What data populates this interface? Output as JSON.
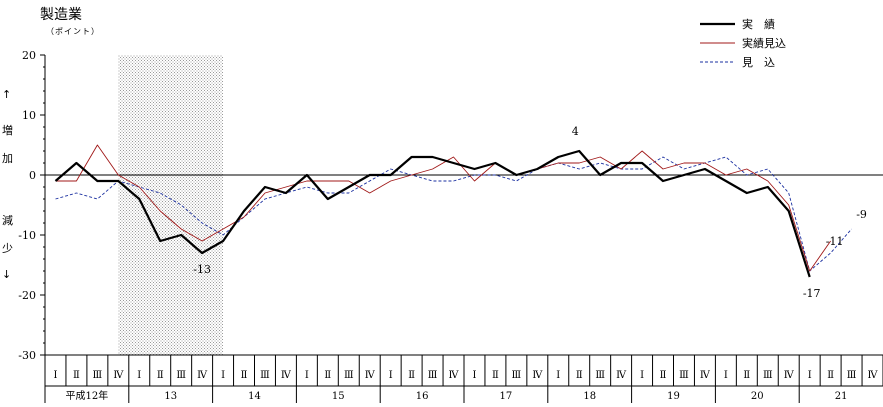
{
  "header": {
    "title": "製造業",
    "unit": "（ポイント）"
  },
  "y_axis_side": {
    "up_arrow": "↑",
    "increase_1": "増",
    "increase_2": "加",
    "decrease_1": "減",
    "decrease_2": "少",
    "down_arrow": "↓"
  },
  "chart_data": {
    "type": "line",
    "title": "製造業",
    "ylabel": "（ポイント）",
    "ylim": [
      -30,
      20
    ],
    "yticks": [
      20,
      10,
      0,
      -10,
      -20,
      -30
    ],
    "grid": false,
    "legend_position": "top-right",
    "shaded_period": {
      "start_index": 3,
      "end_index": 8
    },
    "quarters": [
      "Ⅰ",
      "Ⅱ",
      "Ⅲ",
      "Ⅳ",
      "Ⅰ",
      "Ⅱ",
      "Ⅲ",
      "Ⅳ",
      "Ⅰ",
      "Ⅱ",
      "Ⅲ",
      "Ⅳ",
      "Ⅰ",
      "Ⅱ",
      "Ⅲ",
      "Ⅳ",
      "Ⅰ",
      "Ⅱ",
      "Ⅲ",
      "Ⅳ",
      "Ⅰ",
      "Ⅱ",
      "Ⅲ",
      "Ⅳ",
      "Ⅰ",
      "Ⅱ",
      "Ⅲ",
      "Ⅳ",
      "Ⅰ",
      "Ⅱ",
      "Ⅲ",
      "Ⅳ",
      "Ⅰ",
      "Ⅱ",
      "Ⅲ",
      "Ⅳ",
      "Ⅰ",
      "Ⅱ",
      "Ⅲ",
      "Ⅳ"
    ],
    "years": [
      {
        "label": "平成12年",
        "start": 0,
        "count": 4
      },
      {
        "label": "13",
        "start": 4,
        "count": 4
      },
      {
        "label": "14",
        "start": 8,
        "count": 4
      },
      {
        "label": "15",
        "start": 12,
        "count": 4
      },
      {
        "label": "16",
        "start": 16,
        "count": 4
      },
      {
        "label": "17",
        "start": 20,
        "count": 4
      },
      {
        "label": "18",
        "start": 24,
        "count": 4
      },
      {
        "label": "19",
        "start": 28,
        "count": 4
      },
      {
        "label": "20",
        "start": 32,
        "count": 4
      },
      {
        "label": "21",
        "start": 36,
        "count": 4
      }
    ],
    "series": [
      {
        "name": "実　績",
        "color": "#000000",
        "style": "solid-thick",
        "values": [
          -1,
          2,
          -1,
          -1,
          -4,
          -11,
          -10,
          -13,
          -11,
          -6,
          -2,
          -3,
          0,
          -4,
          -2,
          0,
          0,
          3,
          3,
          2,
          1,
          2,
          0,
          1,
          3,
          4,
          0,
          2,
          2,
          -1,
          0,
          1,
          -1,
          -3,
          -2,
          -6,
          -17,
          null,
          null,
          null
        ]
      },
      {
        "name": "実績見込",
        "color": "#a01818",
        "style": "solid-thin",
        "values": [
          -1,
          -1,
          5,
          0,
          -2,
          -6,
          -9,
          -11,
          -9,
          -7,
          -3,
          -2,
          -1,
          -1,
          -1,
          -3,
          -1,
          0,
          1,
          3,
          -1,
          2,
          0,
          1,
          2,
          2,
          3,
          1,
          4,
          1,
          2,
          2,
          0,
          1,
          -1,
          -5,
          -16,
          -11,
          null,
          null
        ]
      },
      {
        "name": "見　込",
        "color": "#1a2fa0",
        "style": "dashed",
        "values": [
          -4,
          -3,
          -4,
          -1,
          -2,
          -3,
          -5,
          -8,
          -10,
          -7,
          -4,
          -3,
          -2,
          -3,
          -3,
          -1,
          1,
          0,
          -1,
          -1,
          0,
          0,
          -1,
          1,
          2,
          1,
          2,
          1,
          1,
          3,
          1,
          2,
          3,
          0,
          1,
          -3,
          -16,
          -13,
          -9,
          null
        ]
      }
    ],
    "annotations": [
      {
        "text": "4",
        "index": 25,
        "value": 4
      },
      {
        "text": "-13",
        "index": 7,
        "value": -13
      },
      {
        "text": "-17",
        "index": 36,
        "value": -17
      },
      {
        "text": "-11",
        "index": 37,
        "value": -11
      },
      {
        "text": "-9",
        "index": 38,
        "value": -9
      }
    ]
  }
}
